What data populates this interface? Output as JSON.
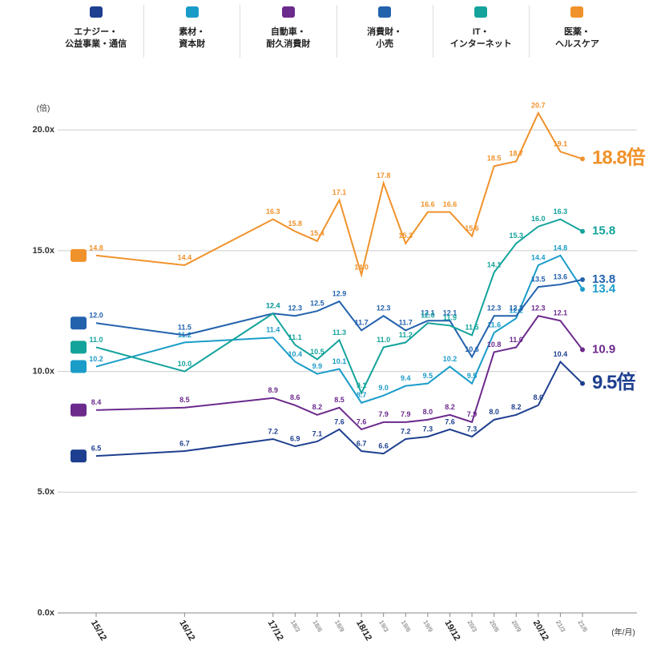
{
  "chart_data": {
    "type": "line",
    "y_label": "(倍)",
    "x_label": "(年/月)",
    "categories": [
      "15/12",
      "16/12",
      "17/12",
      "18/3",
      "18/6",
      "18/9",
      "18/12",
      "19/3",
      "19/6",
      "19/9",
      "19/12",
      "20/3",
      "20/6",
      "20/9",
      "20/12",
      "21/3",
      "21/6"
    ],
    "ylim": [
      0,
      21
    ],
    "yticks": [
      {
        "value": 0,
        "label": "0.0x"
      },
      {
        "value": 5,
        "label": "5.0x"
      },
      {
        "value": 10,
        "label": "10.0x"
      },
      {
        "value": 15,
        "label": "15.0x"
      },
      {
        "value": 20,
        "label": "20.0x"
      }
    ],
    "grid": true,
    "series": [
      {
        "name": "エナジー・\n公益事業・通信",
        "color": "#1e3f8f",
        "values": [
          6.5,
          6.7,
          7.2,
          6.9,
          7.1,
          7.6,
          6.7,
          6.6,
          7.2,
          7.3,
          7.6,
          7.3,
          8.0,
          8.2,
          8.6,
          10.4,
          9.5
        ],
        "value_labels": [
          "6.5",
          "6.7",
          "7.2",
          "6.9",
          "7.1",
          "7.6",
          "6.7",
          "6.6",
          "7.2",
          "7.3",
          "7.6",
          "7.3",
          "8.0",
          "8.2",
          "8.6",
          "10.4",
          "9.5倍"
        ]
      },
      {
        "name": "素材・\n資本財",
        "color": "#1a9cc9",
        "values": [
          10.2,
          11.2,
          11.4,
          10.4,
          9.9,
          10.1,
          8.7,
          9.0,
          9.4,
          9.5,
          10.2,
          9.5,
          11.6,
          12.2,
          14.4,
          14.8,
          13.4
        ],
        "value_labels": [
          "10.2",
          "11.2",
          "11.4",
          "10.4",
          "9.9",
          "10.1",
          "8.7",
          "9.0",
          "9.4",
          "9.5",
          "10.2",
          "9.5",
          "11.6",
          "12.2",
          "14.4",
          "14.8",
          "13.4"
        ]
      },
      {
        "name": "自動車・\n耐久消費財",
        "color": "#6b2a8c",
        "values": [
          8.4,
          8.5,
          8.9,
          8.6,
          8.2,
          8.5,
          7.6,
          7.9,
          7.9,
          8.0,
          8.2,
          7.9,
          10.8,
          11.0,
          12.3,
          12.1,
          10.9
        ],
        "value_labels": [
          "8.4",
          "8.5",
          "8.9",
          "8.6",
          "8.2",
          "8.5",
          "7.6",
          "7.9",
          "7.9",
          "8.0",
          "8.2",
          "7.9",
          "10.8",
          "11.0",
          "12.3",
          "12.1",
          "10.9"
        ]
      },
      {
        "name": "消費財・\n小売",
        "color": "#2362ad",
        "values": [
          12.0,
          11.5,
          12.4,
          12.3,
          12.5,
          12.9,
          11.7,
          12.3,
          11.7,
          12.1,
          12.1,
          10.6,
          12.3,
          12.3,
          13.5,
          13.6,
          13.8
        ],
        "value_labels": [
          "12.0",
          "11.5",
          "12.4",
          "12.3",
          "12.5",
          "12.9",
          "11.7",
          "12.3",
          "11.7",
          "12.1",
          "12.1",
          "10.6",
          "12.3",
          "12.3",
          "13.5",
          "13.6",
          "13.8"
        ]
      },
      {
        "name": "IT・\nインターネット",
        "color": "#13a39b",
        "values": [
          11.0,
          10.0,
          12.4,
          11.1,
          10.5,
          11.3,
          9.1,
          11.0,
          11.2,
          12.0,
          11.9,
          11.5,
          14.1,
          15.3,
          16.0,
          16.3,
          15.8
        ],
        "value_labels": [
          "11.0",
          "10.0",
          "12.4",
          "11.1",
          "10.5",
          "11.3",
          "9.1",
          "11.0",
          "11.2",
          "12.0",
          "11.9",
          "11.5",
          "14.1",
          "15.3",
          "16.0",
          "16.3",
          "15.8"
        ]
      },
      {
        "name": "医薬・\nヘルスケア",
        "color": "#f0922b",
        "values": [
          14.8,
          14.4,
          16.3,
          15.8,
          15.4,
          17.1,
          14.0,
          17.8,
          15.3,
          16.6,
          16.6,
          15.6,
          18.5,
          18.7,
          20.7,
          19.1,
          18.8
        ],
        "value_labels": [
          "14.8",
          "14.4",
          "16.3",
          "15.8",
          "15.4",
          "17.1",
          "14.0",
          "17.8",
          "15.3",
          "16.6",
          "16.6",
          "15.6",
          "18.5",
          "18.7",
          "20.7",
          "19.1",
          "18.8倍"
        ]
      }
    ]
  }
}
